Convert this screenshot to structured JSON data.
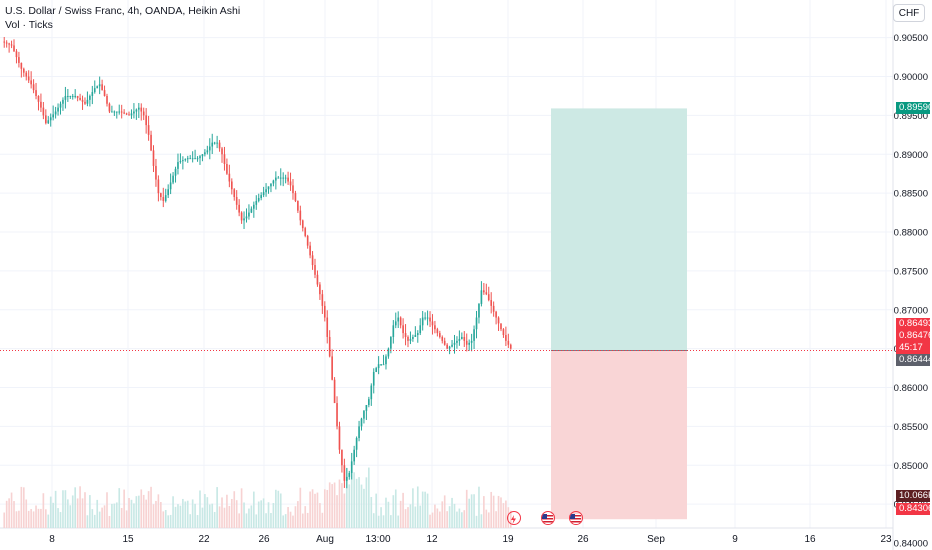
{
  "legend": {
    "symbol_line": "U.S. Dollar / Swiss Franc, 4h, OANDA, Heikin Ashi",
    "volume_line": "Vol · Ticks"
  },
  "currency_button": "CHF",
  "colors": {
    "up": "#26a69a",
    "down": "#ef5350",
    "vol_up": "#c8e8e5",
    "vol_down": "#f7d2d2",
    "profit_zone": "#cde9e4",
    "loss_zone": "#f9d5d6",
    "grid": "#f0f3fa"
  },
  "price_tags": {
    "target": "0.89590",
    "current_price": "0.86493",
    "entry": "0.86476",
    "countdown": "45:17",
    "stop_line": "0.86444",
    "volume": "10.066K",
    "stop": "0.84306"
  },
  "event_icons": [
    "lightning-icon",
    "us-flag-icon",
    "us-flag-icon"
  ],
  "chart_data": {
    "type": "candlestick",
    "title": "U.S. Dollar / Swiss Franc, 4h, OANDA, Heikin Ashi",
    "y_ticks": [
      "0.90500",
      "0.90000",
      "0.89500",
      "0.89000",
      "0.88500",
      "0.88000",
      "0.87500",
      "0.87000",
      "0.86500",
      "0.86000",
      "0.85500",
      "0.85000",
      "0.84500",
      "0.84000"
    ],
    "y_range": [
      0.84,
      0.9065
    ],
    "x_ticks": [
      "8",
      "15",
      "22",
      "26",
      "Aug",
      "13:00",
      "12",
      "19",
      "26",
      "Sep",
      "9",
      "16",
      "23"
    ],
    "price_path": [
      [
        0,
        0.9045
      ],
      [
        4,
        0.904
      ],
      [
        8,
        0.901
      ],
      [
        12,
        0.899
      ],
      [
        16,
        0.896
      ],
      [
        18,
        0.894
      ],
      [
        22,
        0.8955
      ],
      [
        26,
        0.8975
      ],
      [
        30,
        0.8975
      ],
      [
        34,
        0.8965
      ],
      [
        38,
        0.8985
      ],
      [
        40,
        0.899
      ],
      [
        42,
        0.8975
      ],
      [
        44,
        0.8955
      ],
      [
        48,
        0.8955
      ],
      [
        52,
        0.895
      ],
      [
        56,
        0.896
      ],
      [
        58,
        0.895
      ],
      [
        60,
        0.8925
      ],
      [
        62,
        0.8885
      ],
      [
        64,
        0.885
      ],
      [
        66,
        0.884
      ],
      [
        68,
        0.8855
      ],
      [
        72,
        0.889
      ],
      [
        76,
        0.8895
      ],
      [
        80,
        0.8895
      ],
      [
        84,
        0.8905
      ],
      [
        86,
        0.8915
      ],
      [
        88,
        0.8915
      ],
      [
        90,
        0.89
      ],
      [
        92,
        0.8875
      ],
      [
        94,
        0.8855
      ],
      [
        96,
        0.8835
      ],
      [
        98,
        0.8815
      ],
      [
        100,
        0.882
      ],
      [
        104,
        0.884
      ],
      [
        108,
        0.8855
      ],
      [
        112,
        0.887
      ],
      [
        116,
        0.887
      ],
      [
        118,
        0.886
      ],
      [
        120,
        0.884
      ],
      [
        122,
        0.8815
      ],
      [
        124,
        0.8795
      ],
      [
        126,
        0.877
      ],
      [
        128,
        0.8745
      ],
      [
        130,
        0.872
      ],
      [
        132,
        0.869
      ],
      [
        134,
        0.864
      ],
      [
        136,
        0.858
      ],
      [
        138,
        0.852
      ],
      [
        140,
        0.848
      ],
      [
        142,
        0.849
      ],
      [
        144,
        0.852
      ],
      [
        146,
        0.855
      ],
      [
        148,
        0.857
      ],
      [
        150,
        0.8585
      ],
      [
        152,
        0.862
      ],
      [
        154,
        0.863
      ],
      [
        156,
        0.863
      ],
      [
        158,
        0.865
      ],
      [
        160,
        0.868
      ],
      [
        162,
        0.869
      ],
      [
        164,
        0.867
      ],
      [
        166,
        0.866
      ],
      [
        168,
        0.8665
      ],
      [
        170,
        0.867
      ],
      [
        172,
        0.869
      ],
      [
        174,
        0.869
      ],
      [
        176,
        0.868
      ],
      [
        178,
        0.867
      ],
      [
        180,
        0.866
      ],
      [
        182,
        0.865
      ],
      [
        184,
        0.8655
      ],
      [
        186,
        0.866
      ],
      [
        188,
        0.8665
      ],
      [
        190,
        0.8655
      ],
      [
        192,
        0.866
      ],
      [
        194,
        0.869
      ],
      [
        196,
        0.8725
      ],
      [
        198,
        0.872
      ],
      [
        200,
        0.8705
      ],
      [
        202,
        0.869
      ],
      [
        204,
        0.8675
      ],
      [
        206,
        0.866
      ],
      [
        208,
        0.865
      ]
    ],
    "position": {
      "entry": 0.86476,
      "target": 0.8959,
      "stop": 0.84306
    },
    "volume_label": "10.066K"
  }
}
